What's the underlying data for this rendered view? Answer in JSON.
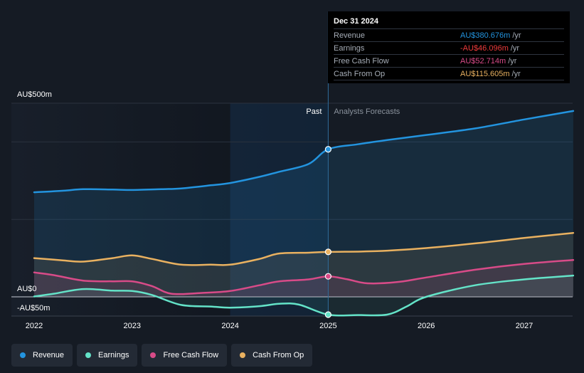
{
  "chart_data": {
    "type": "area",
    "x_ticks": [
      "2022",
      "2023",
      "2024",
      "2025",
      "2026",
      "2027"
    ],
    "y_labels": {
      "top": "AU$500m",
      "zero": "AU$0",
      "bottom": "-AU$50m"
    },
    "regions": {
      "past": "Past",
      "forecast": "Analysts Forecasts"
    },
    "divider_x": 2025.0,
    "forecast_shade_start": 2024.0,
    "ylim": [
      -50,
      500
    ],
    "xlim": [
      2021.8,
      2027.5
    ],
    "series": [
      {
        "name": "Revenue",
        "color": "#2394df",
        "points": [
          [
            2022.0,
            270
          ],
          [
            2022.3,
            274
          ],
          [
            2022.5,
            278
          ],
          [
            2022.8,
            277
          ],
          [
            2023.0,
            276
          ],
          [
            2023.3,
            278
          ],
          [
            2023.5,
            280
          ],
          [
            2023.8,
            288
          ],
          [
            2024.0,
            294
          ],
          [
            2024.3,
            310
          ],
          [
            2024.5,
            323
          ],
          [
            2024.8,
            343
          ],
          [
            2025.0,
            381
          ],
          [
            2025.3,
            394
          ],
          [
            2025.6,
            405
          ],
          [
            2026.0,
            418
          ],
          [
            2026.5,
            435
          ],
          [
            2027.0,
            458
          ],
          [
            2027.5,
            480
          ]
        ]
      },
      {
        "name": "Earnings",
        "color": "#64e3c8",
        "points": [
          [
            2022.0,
            1
          ],
          [
            2022.2,
            8
          ],
          [
            2022.5,
            20
          ],
          [
            2022.8,
            16
          ],
          [
            2023.0,
            15
          ],
          [
            2023.2,
            5
          ],
          [
            2023.5,
            -21
          ],
          [
            2023.8,
            -25
          ],
          [
            2024.0,
            -28
          ],
          [
            2024.3,
            -24
          ],
          [
            2024.5,
            -18
          ],
          [
            2024.7,
            -20
          ],
          [
            2025.0,
            -46
          ],
          [
            2025.3,
            -47
          ],
          [
            2025.6,
            -46
          ],
          [
            2025.8,
            -25
          ],
          [
            2026.0,
            0
          ],
          [
            2026.5,
            30
          ],
          [
            2027.0,
            45
          ],
          [
            2027.5,
            55
          ]
        ]
      },
      {
        "name": "Free Cash Flow",
        "color": "#d84b88",
        "points": [
          [
            2022.0,
            63
          ],
          [
            2022.2,
            56
          ],
          [
            2022.5,
            42
          ],
          [
            2022.8,
            40
          ],
          [
            2023.0,
            40
          ],
          [
            2023.2,
            28
          ],
          [
            2023.4,
            8
          ],
          [
            2023.7,
            10
          ],
          [
            2024.0,
            15
          ],
          [
            2024.3,
            30
          ],
          [
            2024.5,
            40
          ],
          [
            2024.8,
            45
          ],
          [
            2025.0,
            53
          ],
          [
            2025.2,
            45
          ],
          [
            2025.4,
            35
          ],
          [
            2025.7,
            38
          ],
          [
            2026.0,
            50
          ],
          [
            2026.5,
            70
          ],
          [
            2027.0,
            85
          ],
          [
            2027.5,
            95
          ]
        ]
      },
      {
        "name": "Cash From Op",
        "color": "#e9b160",
        "points": [
          [
            2022.0,
            100
          ],
          [
            2022.3,
            94
          ],
          [
            2022.5,
            91
          ],
          [
            2022.8,
            100
          ],
          [
            2023.0,
            107
          ],
          [
            2023.2,
            98
          ],
          [
            2023.5,
            83
          ],
          [
            2023.8,
            83
          ],
          [
            2024.0,
            83
          ],
          [
            2024.3,
            98
          ],
          [
            2024.5,
            112
          ],
          [
            2024.8,
            114
          ],
          [
            2025.0,
            116
          ],
          [
            2025.5,
            118
          ],
          [
            2026.0,
            126
          ],
          [
            2026.5,
            138
          ],
          [
            2027.0,
            152
          ],
          [
            2027.5,
            165
          ]
        ]
      }
    ],
    "highlight": {
      "date": "Dec 31 2024",
      "rows": [
        {
          "label": "Revenue",
          "value": "AU$380.676m",
          "unit": "/yr",
          "color": "#2394df",
          "y": 381
        },
        {
          "label": "Earnings",
          "value": "-AU$46.096m",
          "unit": "/yr",
          "color": "#ef3b3b",
          "y": -46
        },
        {
          "label": "Free Cash Flow",
          "value": "AU$52.714m",
          "unit": "/yr",
          "color": "#d84b88",
          "y": 53
        },
        {
          "label": "Cash From Op",
          "value": "AU$115.605m",
          "unit": "/yr",
          "color": "#e9b160",
          "y": 116
        }
      ]
    }
  },
  "legend": [
    {
      "label": "Revenue",
      "color": "#2394df"
    },
    {
      "label": "Earnings",
      "color": "#64e3c8"
    },
    {
      "label": "Free Cash Flow",
      "color": "#d84b88"
    },
    {
      "label": "Cash From Op",
      "color": "#e9b160"
    }
  ]
}
